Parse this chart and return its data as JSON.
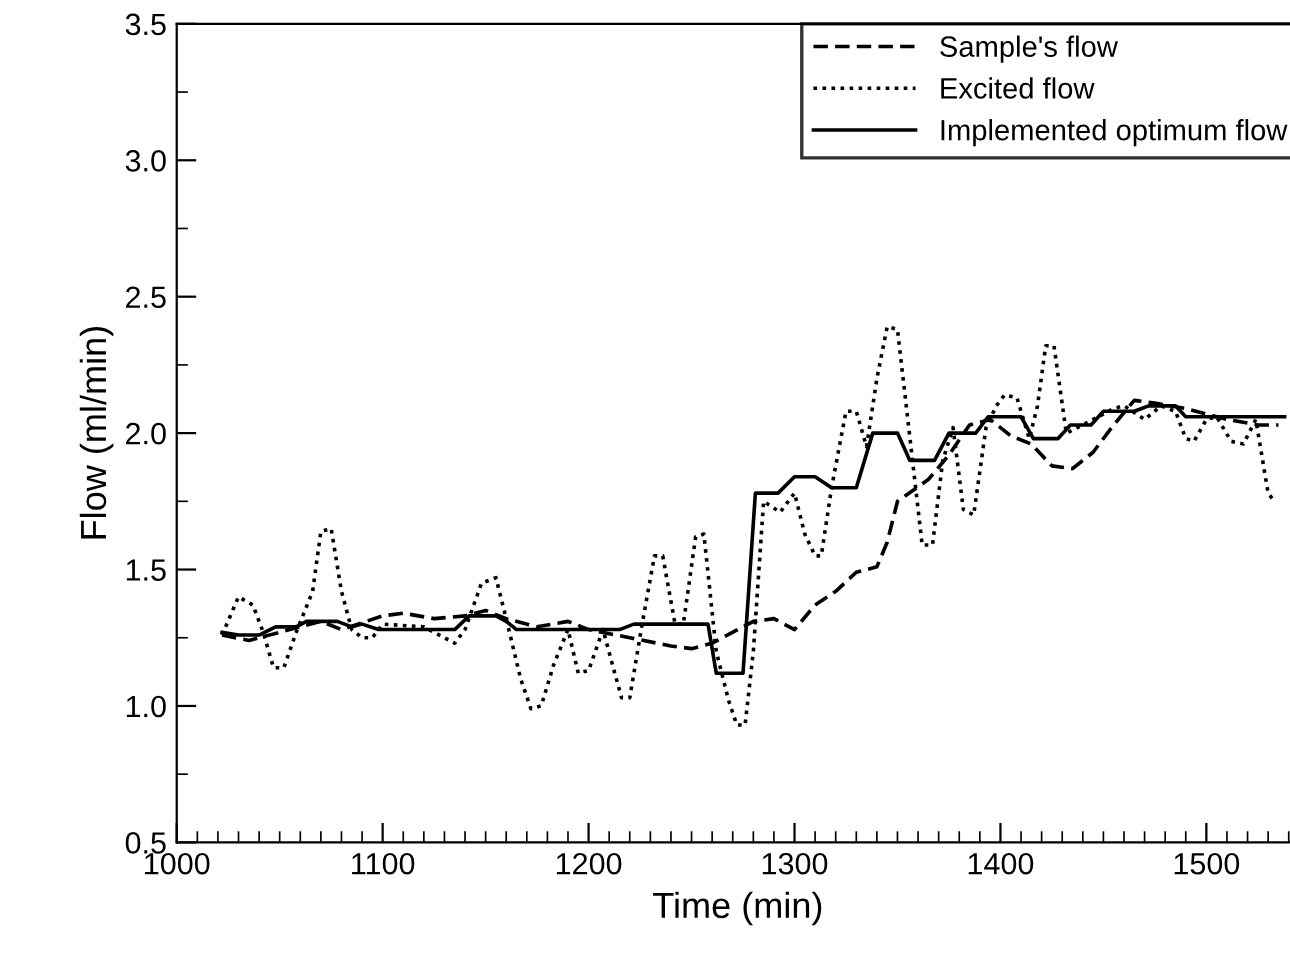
{
  "chart_data": {
    "type": "line",
    "xlabel": "Time (min)",
    "ylabel": "Flow (ml/min)",
    "xlim": [
      1000,
      1545
    ],
    "ylim": [
      0.5,
      3.5
    ],
    "xticks": [
      1000,
      {
        "value": 1010,
        "label": null
      },
      {
        "value": 1020,
        "label": null
      },
      {
        "value": 1030,
        "label": null
      },
      {
        "value": 1040,
        "label": null
      },
      {
        "value": 1050,
        "label": null
      },
      {
        "value": 1060,
        "label": null
      },
      {
        "value": 1070,
        "label": null
      },
      {
        "value": 1080,
        "label": null
      },
      {
        "value": 1090,
        "label": null
      },
      1100,
      {
        "value": 1110,
        "label": null
      },
      {
        "value": 1120,
        "label": null
      },
      {
        "value": 1130,
        "label": null
      },
      {
        "value": 1140,
        "label": null
      },
      {
        "value": 1150,
        "label": null
      },
      {
        "value": 1160,
        "label": null
      },
      {
        "value": 1170,
        "label": null
      },
      {
        "value": 1180,
        "label": null
      },
      {
        "value": 1190,
        "label": null
      },
      1200,
      {
        "value": 1210,
        "label": null
      },
      {
        "value": 1220,
        "label": null
      },
      {
        "value": 1230,
        "label": null
      },
      {
        "value": 1240,
        "label": null
      },
      {
        "value": 1250,
        "label": null
      },
      {
        "value": 1260,
        "label": null
      },
      {
        "value": 1270,
        "label": null
      },
      {
        "value": 1280,
        "label": null
      },
      {
        "value": 1290,
        "label": null
      },
      1300,
      {
        "value": 1310,
        "label": null
      },
      {
        "value": 1320,
        "label": null
      },
      {
        "value": 1330,
        "label": null
      },
      {
        "value": 1340,
        "label": null
      },
      {
        "value": 1350,
        "label": null
      },
      {
        "value": 1360,
        "label": null
      },
      {
        "value": 1370,
        "label": null
      },
      {
        "value": 1380,
        "label": null
      },
      {
        "value": 1390,
        "label": null
      },
      1400,
      {
        "value": 1410,
        "label": null
      },
      {
        "value": 1420,
        "label": null
      },
      {
        "value": 1430,
        "label": null
      },
      {
        "value": 1440,
        "label": null
      },
      {
        "value": 1450,
        "label": null
      },
      {
        "value": 1460,
        "label": null
      },
      {
        "value": 1470,
        "label": null
      },
      {
        "value": 1480,
        "label": null
      },
      {
        "value": 1490,
        "label": null
      },
      1500,
      {
        "value": 1510,
        "label": null
      },
      {
        "value": 1520,
        "label": null
      },
      {
        "value": 1530,
        "label": null
      },
      {
        "value": 1540,
        "label": null
      }
    ],
    "yticks": [
      {
        "value": 0.5,
        "label": "0.5"
      },
      {
        "value": 0.75,
        "label": null
      },
      {
        "value": 1.0,
        "label": "1.0"
      },
      {
        "value": 1.25,
        "label": null
      },
      {
        "value": 1.5,
        "label": "1.5"
      },
      {
        "value": 1.75,
        "label": null
      },
      {
        "value": 2.0,
        "label": "2.0"
      },
      {
        "value": 2.25,
        "label": null
      },
      {
        "value": 2.5,
        "label": "2.5"
      },
      {
        "value": 2.75,
        "label": null
      },
      {
        "value": 3.0,
        "label": "3.0"
      },
      {
        "value": 3.25,
        "label": null
      },
      {
        "value": 3.5,
        "label": "3.5"
      }
    ],
    "legend": "top right",
    "grid": false,
    "marker": "none",
    "series": [
      {
        "name": "Sample's flow",
        "color": "#000000",
        "line_style": "dashed",
        "x": [
          1022,
          1035,
          1050,
          1060,
          1070,
          1080,
          1100,
          1110,
          1125,
          1140,
          1150,
          1160,
          1175,
          1190,
          1200,
          1220,
          1240,
          1250,
          1260,
          1280,
          1290,
          1300,
          1310,
          1320,
          1330,
          1340,
          1345,
          1350,
          1365,
          1375,
          1385,
          1395,
          1405,
          1415,
          1425,
          1435,
          1445,
          1455,
          1465,
          1475,
          1490,
          1500,
          1510,
          1525,
          1535
        ],
        "values": [
          1.26,
          1.24,
          1.27,
          1.29,
          1.31,
          1.28,
          1.33,
          1.34,
          1.32,
          1.33,
          1.35,
          1.32,
          1.29,
          1.31,
          1.28,
          1.25,
          1.22,
          1.21,
          1.23,
          1.31,
          1.32,
          1.28,
          1.37,
          1.42,
          1.49,
          1.51,
          1.6,
          1.75,
          1.83,
          1.92,
          2.03,
          2.05,
          1.99,
          1.96,
          1.88,
          1.87,
          1.93,
          2.03,
          2.12,
          2.11,
          2.09,
          2.07,
          2.05,
          2.03,
          2.03
        ]
      },
      {
        "name": "Excited flow",
        "color": "#000000",
        "line_style": "dotted",
        "x": [
          1022,
          1030,
          1037,
          1042,
          1047,
          1052,
          1058,
          1066,
          1070,
          1075,
          1080,
          1085,
          1090,
          1095,
          1100,
          1120,
          1130,
          1135,
          1140,
          1148,
          1155,
          1160,
          1167,
          1172,
          1177,
          1183,
          1190,
          1195,
          1200,
          1207,
          1212,
          1216,
          1220,
          1226,
          1232,
          1236,
          1242,
          1246,
          1252,
          1256,
          1262,
          1268,
          1272,
          1276,
          1280,
          1285,
          1293,
          1300,
          1305,
          1310,
          1313,
          1318,
          1325,
          1330,
          1335,
          1340,
          1345,
          1350,
          1357,
          1362,
          1367,
          1372,
          1377,
          1382,
          1387,
          1393,
          1398,
          1402,
          1408,
          1414,
          1418,
          1422,
          1426,
          1432,
          1440,
          1455,
          1460,
          1470,
          1478,
          1485,
          1490,
          1494,
          1500,
          1505,
          1512,
          1518,
          1524,
          1530,
          1532
        ],
        "values": [
          1.26,
          1.4,
          1.37,
          1.27,
          1.14,
          1.14,
          1.27,
          1.42,
          1.64,
          1.65,
          1.42,
          1.28,
          1.25,
          1.25,
          1.3,
          1.29,
          1.25,
          1.23,
          1.28,
          1.45,
          1.47,
          1.32,
          1.1,
          0.99,
          1.0,
          1.15,
          1.28,
          1.12,
          1.13,
          1.28,
          1.14,
          1.03,
          1.03,
          1.3,
          1.55,
          1.55,
          1.3,
          1.3,
          1.62,
          1.63,
          1.2,
          1.02,
          0.93,
          0.93,
          1.2,
          1.75,
          1.71,
          1.78,
          1.63,
          1.55,
          1.55,
          1.8,
          2.08,
          2.08,
          1.95,
          2.2,
          2.39,
          2.38,
          1.92,
          1.59,
          1.59,
          1.9,
          2.02,
          1.72,
          1.7,
          2.02,
          2.1,
          2.14,
          2.13,
          1.98,
          2.1,
          2.32,
          2.32,
          2.0,
          2.03,
          2.09,
          2.1,
          2.05,
          2.1,
          2.08,
          1.98,
          1.97,
          2.05,
          2.06,
          1.97,
          1.96,
          2.05,
          1.78,
          1.76
        ]
      },
      {
        "name": "Implemented optimum flow",
        "color": "#000000",
        "line_style": "solid",
        "x": [
          1022,
          1030,
          1040,
          1048,
          1058,
          1063,
          1078,
          1085,
          1090,
          1098,
          1135,
          1142,
          1155,
          1160,
          1165,
          1215,
          1222,
          1258,
          1262,
          1275,
          1281,
          1292,
          1300,
          1310,
          1318,
          1330,
          1338,
          1350,
          1356,
          1368,
          1375,
          1388,
          1394,
          1410,
          1416,
          1428,
          1434,
          1444,
          1450,
          1465,
          1472,
          1485,
          1490,
          1500,
          1538
        ],
        "values": [
          1.27,
          1.26,
          1.26,
          1.29,
          1.29,
          1.31,
          1.31,
          1.29,
          1.3,
          1.28,
          1.28,
          1.33,
          1.33,
          1.31,
          1.28,
          1.28,
          1.3,
          1.3,
          1.12,
          1.12,
          1.78,
          1.78,
          1.84,
          1.84,
          1.8,
          1.8,
          2.0,
          2.0,
          1.9,
          1.9,
          2.0,
          2.0,
          2.06,
          2.06,
          1.98,
          1.98,
          2.03,
          2.03,
          2.08,
          2.08,
          2.1,
          2.1,
          2.06,
          2.06,
          2.06
        ]
      }
    ]
  }
}
